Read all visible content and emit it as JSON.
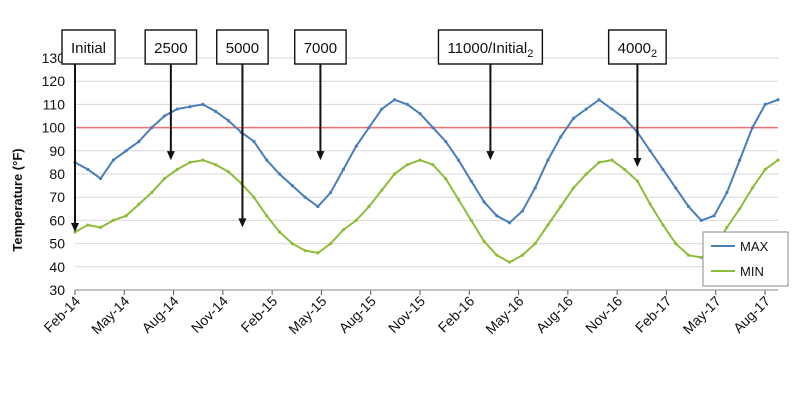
{
  "chart_data": {
    "type": "line",
    "ylabel": "Temperature (°F)",
    "xlabel": "",
    "ylim": [
      30,
      130
    ],
    "yticks": [
      30,
      40,
      50,
      60,
      70,
      80,
      90,
      100,
      110,
      120,
      130
    ],
    "x_tick_labels": [
      "Feb-14",
      "May-14",
      "Aug-14",
      "Nov-14",
      "Feb-15",
      "May-15",
      "Aug-15",
      "Nov-15",
      "Feb-16",
      "May-16",
      "Aug-16",
      "Nov-16",
      "Feb-17",
      "May-17",
      "Aug-17"
    ],
    "grid": true,
    "legend_position": "bottom-right",
    "reference_line": {
      "y": 100,
      "color": "#f07070"
    },
    "series": [
      {
        "name": "MAX",
        "color": "#4a7ebb",
        "values": [
          85,
          82,
          78,
          86,
          90,
          94,
          100,
          105,
          108,
          109,
          110,
          107,
          103,
          98,
          94,
          86,
          80,
          75,
          70,
          66,
          72,
          82,
          92,
          100,
          108,
          112,
          110,
          106,
          100,
          94,
          86,
          77,
          68,
          62,
          59,
          64,
          74,
          86,
          96,
          104,
          108,
          112,
          108,
          104,
          98,
          90,
          82,
          74,
          66,
          60,
          62,
          72,
          86,
          100,
          110,
          112
        ]
      },
      {
        "name": "MIN",
        "color": "#8fbc3a",
        "values": [
          55,
          58,
          57,
          60,
          62,
          67,
          72,
          78,
          82,
          85,
          86,
          84,
          81,
          76,
          70,
          62,
          55,
          50,
          47,
          46,
          50,
          56,
          60,
          66,
          73,
          80,
          84,
          86,
          84,
          78,
          69,
          60,
          51,
          45,
          42,
          45,
          50,
          58,
          66,
          74,
          80,
          85,
          86,
          82,
          77,
          67,
          58,
          50,
          45,
          44,
          48,
          57,
          65,
          74,
          82,
          86
        ]
      }
    ],
    "annotations": [
      {
        "label": "Initial",
        "sub": "",
        "x_index": 0,
        "arrow_to": 55
      },
      {
        "label": "2500",
        "sub": "",
        "x_index": 7.5,
        "arrow_to": 86
      },
      {
        "label": "5000",
        "sub": "",
        "x_index": 13.1,
        "arrow_to": 57
      },
      {
        "label": "7000",
        "sub": "",
        "x_index": 19.2,
        "arrow_to": 86
      },
      {
        "label": "11000/Initial",
        "sub": "2",
        "x_index": 32.5,
        "arrow_to": 86
      },
      {
        "label": "4000",
        "sub": "2",
        "x_index": 44.0,
        "arrow_to": 83
      }
    ]
  }
}
